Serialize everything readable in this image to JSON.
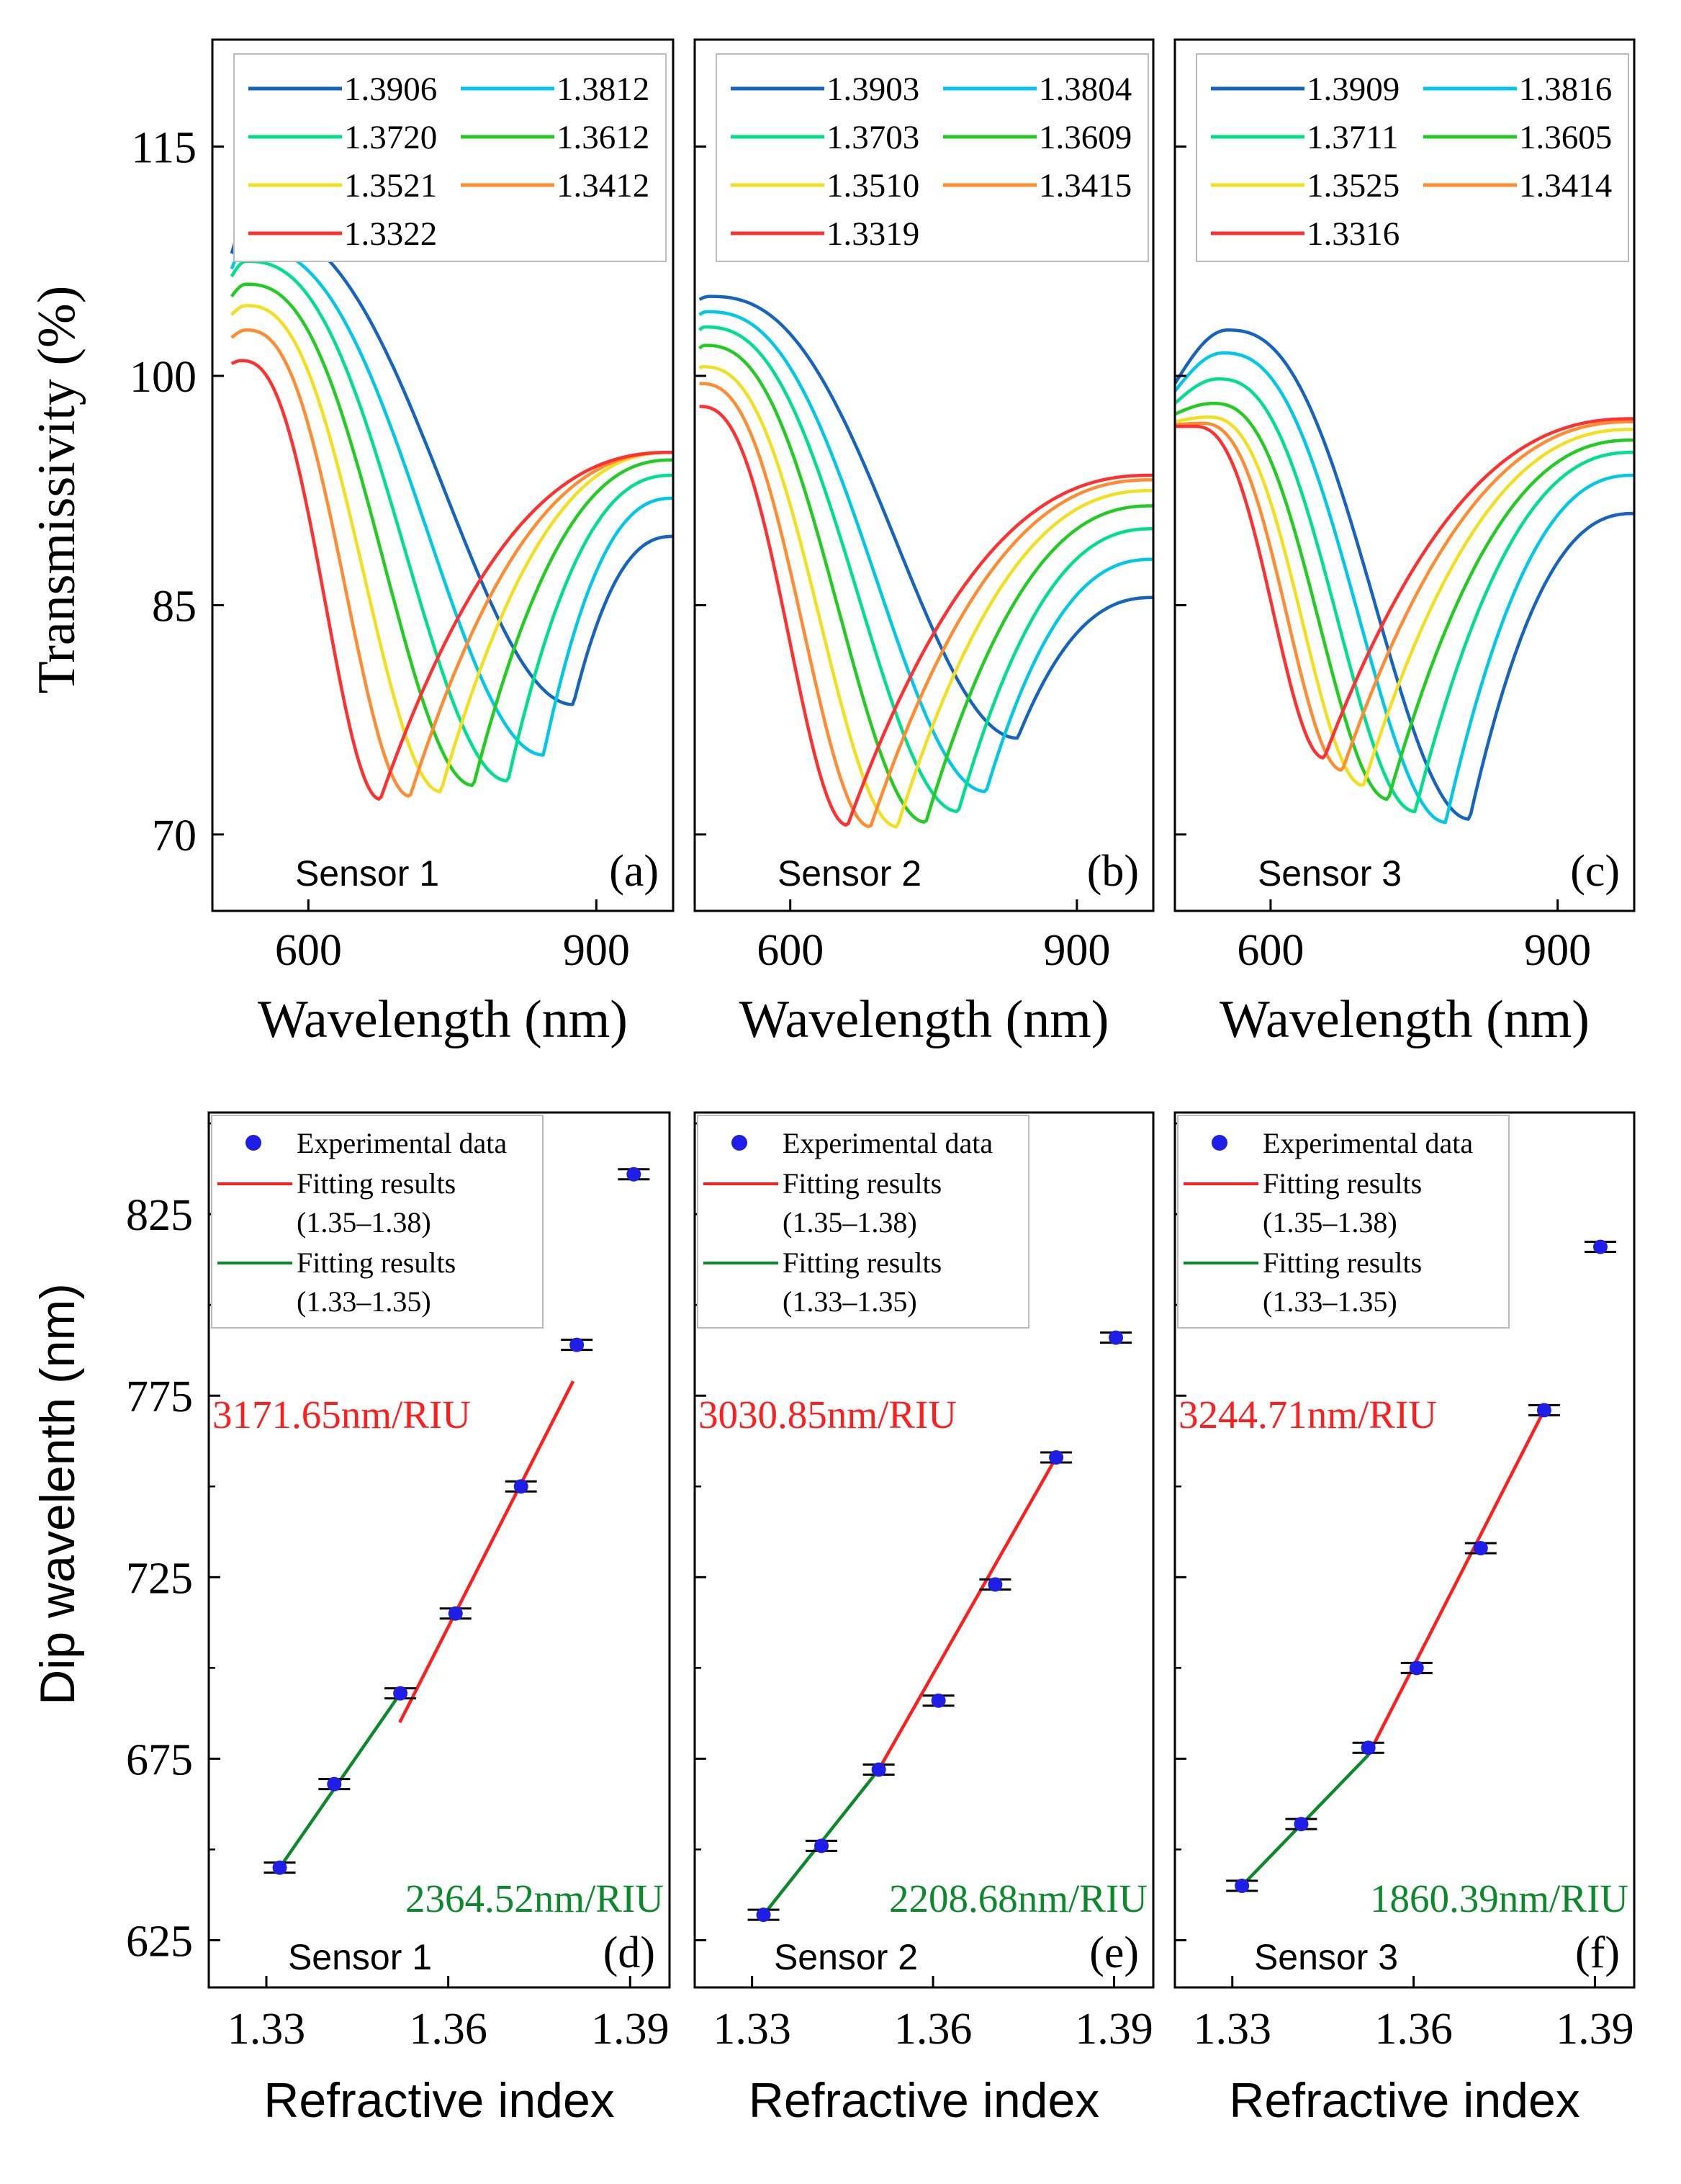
{
  "figure": {
    "top_xlabel": "Wavelength (nm)",
    "top_ylabel": "Transmissivity (%)",
    "bottom_xlabel": "Refractive index",
    "bottom_ylabel": "Dip wavelenth (nm)"
  },
  "colors": {
    "spectra": [
      "#1565c0",
      "#00c8e6",
      "#00e08a",
      "#22cc22",
      "#f2e020",
      "#ff8c30",
      "#ff3030"
    ],
    "experimental": "#1e1ee6",
    "fit_high": "#ff1e1e",
    "fit_low": "#0a8a2a"
  },
  "chart_data": [
    {
      "panel": "(a)",
      "sensor": "Sensor 1",
      "type": "line",
      "xlabel": "Wavelength (nm)",
      "ylabel": "Transmissivity (%)",
      "xlim": [
        500,
        980
      ],
      "ylim": [
        65,
        122
      ],
      "xticks": [
        600,
        900
      ],
      "yticks": [
        70,
        85,
        100,
        115
      ],
      "series": [
        {
          "name": "1.3906",
          "dip_x": 876,
          "dip_y": 78.5,
          "start_y": 108,
          "start_x": 520,
          "peak_x": 535,
          "peak_y": 110,
          "end_y": 89.5
        },
        {
          "name": "1.3812",
          "dip_x": 845,
          "dip_y": 75.2,
          "start_y": 107,
          "start_x": 520,
          "peak_x": 535,
          "peak_y": 108.5,
          "end_y": 92
        },
        {
          "name": "1.3720",
          "dip_x": 808,
          "dip_y": 73.5,
          "start_y": 106.5,
          "start_x": 520,
          "peak_x": 535,
          "peak_y": 107.5,
          "end_y": 93.5
        },
        {
          "name": "1.3612",
          "dip_x": 772,
          "dip_y": 73.2,
          "start_y": 105.2,
          "start_x": 520,
          "peak_x": 535,
          "peak_y": 106,
          "end_y": 94.5
        },
        {
          "name": "1.3521",
          "dip_x": 738,
          "dip_y": 72.8,
          "start_y": 104,
          "start_x": 520,
          "peak_x": 535,
          "peak_y": 104.6,
          "end_y": 95
        },
        {
          "name": "1.3412",
          "dip_x": 706,
          "dip_y": 72.5,
          "start_y": 102.5,
          "start_x": 520,
          "peak_x": 535,
          "peak_y": 103,
          "end_y": 95
        },
        {
          "name": "1.3322",
          "dip_x": 675,
          "dip_y": 72.3,
          "start_y": 100.8,
          "start_x": 520,
          "peak_x": 530,
          "peak_y": 101,
          "end_y": 95
        }
      ]
    },
    {
      "panel": "(b)",
      "sensor": "Sensor 2",
      "type": "line",
      "xlabel": "Wavelength (nm)",
      "ylabel": "Transmissivity (%)",
      "xlim": [
        500,
        980
      ],
      "ylim": [
        65,
        122
      ],
      "xticks": [
        600,
        900
      ],
      "yticks": [
        70,
        85,
        100,
        115
      ],
      "series": [
        {
          "name": "1.3903",
          "dip_x": 838,
          "dip_y": 76.3,
          "start_y": 105,
          "start_x": 505,
          "peak_x": 515,
          "peak_y": 105.2,
          "end_y": 85.5
        },
        {
          "name": "1.3804",
          "dip_x": 805,
          "dip_y": 72.8,
          "start_y": 104,
          "start_x": 505,
          "peak_x": 512,
          "peak_y": 104.2,
          "end_y": 88
        },
        {
          "name": "1.3703",
          "dip_x": 776,
          "dip_y": 71.5,
          "start_y": 103,
          "start_x": 505,
          "peak_x": 510,
          "peak_y": 103.2,
          "end_y": 90
        },
        {
          "name": "1.3609",
          "dip_x": 742,
          "dip_y": 70.8,
          "start_y": 101.8,
          "start_x": 505,
          "peak_x": 510,
          "peak_y": 102,
          "end_y": 91.5
        },
        {
          "name": "1.3510",
          "dip_x": 712,
          "dip_y": 70.5,
          "start_y": 100.5,
          "start_x": 505,
          "peak_x": 508,
          "peak_y": 100.6,
          "end_y": 92.5
        },
        {
          "name": "1.3415",
          "dip_x": 684,
          "dip_y": 70.5,
          "start_y": 99.5,
          "start_x": 505,
          "peak_x": 506,
          "peak_y": 99.5,
          "end_y": 93.2
        },
        {
          "name": "1.3319",
          "dip_x": 660,
          "dip_y": 70.6,
          "start_y": 98,
          "start_x": 505,
          "peak_x": 505,
          "peak_y": 98,
          "end_y": 93.5
        }
      ]
    },
    {
      "panel": "(c)",
      "sensor": "Sensor 3",
      "type": "line",
      "xlabel": "Wavelength (nm)",
      "ylabel": "Transmissivity (%)",
      "xlim": [
        500,
        980
      ],
      "ylim": [
        65,
        122
      ],
      "xticks": [
        600,
        900
      ],
      "yticks": [
        70,
        85,
        100,
        115
      ],
      "series": [
        {
          "name": "1.3909",
          "dip_x": 808,
          "dip_y": 71,
          "start_y": 99.5,
          "start_x": 500,
          "peak_x": 555,
          "peak_y": 103,
          "end_y": 91
        },
        {
          "name": "1.3816",
          "dip_x": 783,
          "dip_y": 70.8,
          "start_y": 99,
          "start_x": 500,
          "peak_x": 550,
          "peak_y": 101.5,
          "end_y": 93.5
        },
        {
          "name": "1.3711",
          "dip_x": 751,
          "dip_y": 71.5,
          "start_y": 98.2,
          "start_x": 500,
          "peak_x": 545,
          "peak_y": 99.8,
          "end_y": 95
        },
        {
          "name": "1.3605",
          "dip_x": 723,
          "dip_y": 72.3,
          "start_y": 97.5,
          "start_x": 500,
          "peak_x": 540,
          "peak_y": 98.2,
          "end_y": 95.8
        },
        {
          "name": "1.3525",
          "dip_x": 697,
          "dip_y": 73.2,
          "start_y": 97,
          "start_x": 500,
          "peak_x": 535,
          "peak_y": 97.3,
          "end_y": 96.5
        },
        {
          "name": "1.3414",
          "dip_x": 675,
          "dip_y": 74.2,
          "start_y": 96.8,
          "start_x": 500,
          "peak_x": 528,
          "peak_y": 96.9,
          "end_y": 97
        },
        {
          "name": "1.3316",
          "dip_x": 656,
          "dip_y": 75,
          "start_y": 96.7,
          "start_x": 500,
          "peak_x": 520,
          "peak_y": 96.7,
          "end_y": 97.2
        }
      ]
    },
    {
      "panel": "(d)",
      "sensor": "Sensor 1",
      "type": "scatter",
      "xlabel": "Refractive index",
      "ylabel": "Dip wavelenth (nm)",
      "xlim": [
        1.3205,
        1.3965
      ],
      "ylim": [
        612,
        853
      ],
      "xticks": [
        "1.33",
        "1.36",
        "1.39"
      ],
      "yticks": [
        625,
        675,
        725,
        775,
        825
      ],
      "legend": [
        "Experimental data",
        "Fitting results",
        "(1.35–1.38)",
        "Fitting results",
        "(1.33–1.35)"
      ],
      "x": [
        1.3322,
        1.3412,
        1.3521,
        1.3612,
        1.372,
        1.3812,
        1.3906
      ],
      "y": [
        645,
        668,
        693,
        715,
        750,
        789,
        836
      ],
      "fit_high": {
        "slope_label": "3171.65nm/RIU",
        "x": [
          1.352,
          1.3806
        ],
        "y": [
          685,
          779
        ]
      },
      "fit_low": {
        "slope_label": "2364.52nm/RIU",
        "x": [
          1.3322,
          1.3521
        ],
        "y": [
          645,
          693
        ]
      }
    },
    {
      "panel": "(e)",
      "sensor": "Sensor 2",
      "type": "scatter",
      "xlabel": "Refractive index",
      "ylabel": "Dip wavelenth (nm)",
      "xlim": [
        1.3205,
        1.3965
      ],
      "ylim": [
        612,
        853
      ],
      "xticks": [
        "1.33",
        "1.36",
        "1.39"
      ],
      "yticks": [
        625,
        675,
        725,
        775,
        825
      ],
      "legend": [
        "Experimental data",
        "Fitting results",
        "(1.35–1.38)",
        "Fitting results",
        "(1.33–1.35)"
      ],
      "x": [
        1.3319,
        1.3415,
        1.351,
        1.3609,
        1.3703,
        1.3804,
        1.3903
      ],
      "y": [
        632,
        651,
        672,
        691,
        723,
        758,
        791
      ],
      "fit_high": {
        "slope_label": "3030.85nm/RIU",
        "x": [
          1.351,
          1.3804
        ],
        "y": [
          672,
          758
        ]
      },
      "fit_low": {
        "slope_label": "2208.68nm/RIU",
        "x": [
          1.3319,
          1.351
        ],
        "y": [
          632,
          672
        ]
      }
    },
    {
      "panel": "(f)",
      "sensor": "Sensor 3",
      "type": "scatter",
      "xlabel": "Refractive index",
      "ylabel": "Dip wavelenth (nm)",
      "xlim": [
        1.3205,
        1.3965
      ],
      "ylim": [
        612,
        853
      ],
      "xticks": [
        "1.33",
        "1.36",
        "1.39"
      ],
      "yticks": [
        625,
        675,
        725,
        775,
        825
      ],
      "legend": [
        "Experimental data",
        "Fitting results",
        "(1.35–1.38)",
        "Fitting results",
        "(1.33–1.35)"
      ],
      "x": [
        1.3316,
        1.3414,
        1.3525,
        1.3605,
        1.3711,
        1.3816,
        1.3909
      ],
      "y": [
        640,
        657,
        678,
        700,
        733,
        771,
        816
      ],
      "fit_high": {
        "slope_label": "3244.71nm/RIU",
        "x": [
          1.3525,
          1.3816
        ],
        "y": [
          676,
          771
        ]
      },
      "fit_low": {
        "slope_label": "1860.39nm/RIU",
        "x": [
          1.3316,
          1.3525
        ],
        "y": [
          640,
          676
        ]
      }
    }
  ]
}
